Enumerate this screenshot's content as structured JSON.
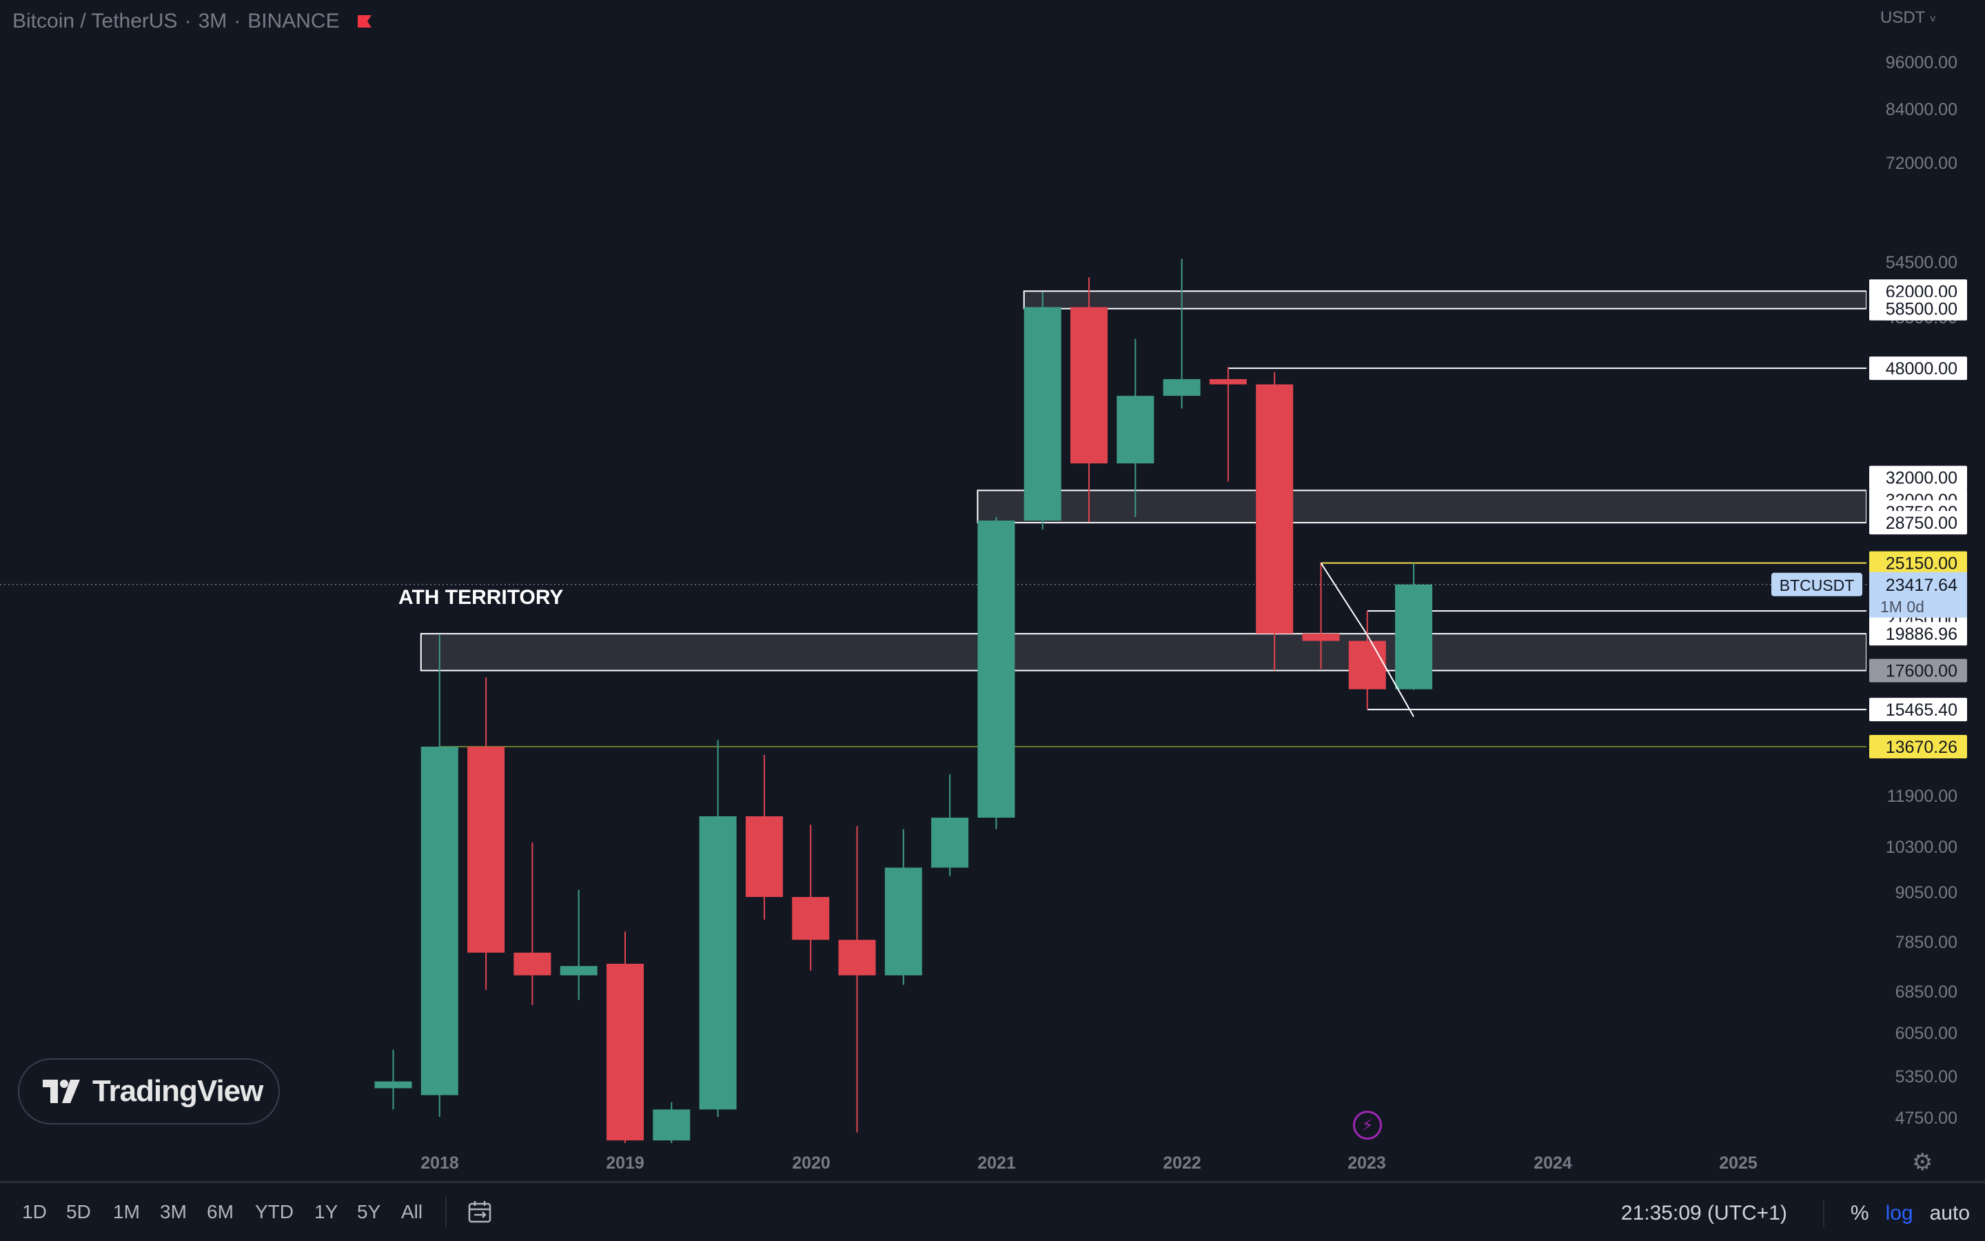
{
  "header": {
    "symbol_title": "Bitcoin / TetherUS",
    "interval": "3M",
    "exchange": "BINANCE",
    "currency_selector": "USDT"
  },
  "toolbar": {
    "timeframes": [
      "1D",
      "5D",
      "1M",
      "3M",
      "6M",
      "YTD",
      "1Y",
      "5Y",
      "All"
    ],
    "clock": "21:35:09 (UTC+1)",
    "percent_label": "%",
    "log_label": "log",
    "auto_label": "auto",
    "log_active": true
  },
  "branding": {
    "logo_text": "TradingView"
  },
  "annotations": {
    "ath_label": "ATH TERRITORY"
  },
  "colors": {
    "background": "#131722",
    "bull": "#3d9b85",
    "bear": "#e0444e",
    "zone_fill": "#2e3039",
    "line": "#ffffff",
    "yellow_label": "#f7e34a",
    "last_price_label": "#bbd6f7"
  },
  "chart_data": {
    "type": "candlestick",
    "scale": "log",
    "x_axis_labels": [
      "2018",
      "2019",
      "2020",
      "2021",
      "2022",
      "2023",
      "2024",
      "2025"
    ],
    "y_axis_ticks": [
      "96000.00",
      "84000.00",
      "72000.00",
      "54500.00",
      "48500.00",
      "40500.00",
      "26500.00",
      "11900.00",
      "10300.00",
      "9050.00",
      "7850.00",
      "6850.00",
      "6050.00",
      "5350.00",
      "4750.00"
    ],
    "ylim": [
      4200,
      115000
    ],
    "candles": [
      {
        "period": "2017-Q3",
        "open": 4400,
        "high": 5000,
        "low": 4100,
        "close": 4500
      },
      {
        "period": "2017-Q4",
        "open": 4300,
        "high": 19800,
        "low": 4000,
        "close": 13670
      },
      {
        "period": "2018-Q1",
        "open": 13670,
        "high": 17200,
        "low": 6100,
        "close": 6900
      },
      {
        "period": "2018-Q2",
        "open": 6900,
        "high": 9950,
        "low": 5800,
        "close": 6400
      },
      {
        "period": "2018-Q3",
        "open": 6400,
        "high": 8500,
        "low": 5900,
        "close": 6600
      },
      {
        "period": "2018-Q4",
        "open": 6650,
        "high": 7400,
        "low": 3200,
        "close": 3700
      },
      {
        "period": "2019-Q1",
        "open": 3700,
        "high": 4200,
        "low": 3300,
        "close": 4100
      },
      {
        "period": "2019-Q2",
        "open": 4100,
        "high": 13970,
        "low": 4000,
        "close": 10850
      },
      {
        "period": "2019-Q3",
        "open": 10850,
        "high": 13300,
        "low": 7700,
        "close": 8300
      },
      {
        "period": "2019-Q4",
        "open": 8300,
        "high": 10550,
        "low": 6500,
        "close": 7200
      },
      {
        "period": "2020-Q1",
        "open": 7200,
        "high": 10500,
        "low": 3800,
        "close": 6400
      },
      {
        "period": "2020-Q2",
        "open": 6400,
        "high": 10400,
        "low": 6200,
        "close": 9150
      },
      {
        "period": "2020-Q3",
        "open": 9150,
        "high": 12470,
        "low": 8900,
        "close": 10800
      },
      {
        "period": "2020-Q4",
        "open": 10800,
        "high": 29300,
        "low": 10400,
        "close": 28950
      },
      {
        "period": "2021-Q1",
        "open": 28950,
        "high": 61800,
        "low": 28100,
        "close": 58800
      },
      {
        "period": "2021-Q2",
        "open": 58800,
        "high": 64900,
        "low": 28800,
        "close": 35000
      },
      {
        "period": "2021-Q3",
        "open": 35000,
        "high": 52900,
        "low": 29300,
        "close": 43800
      },
      {
        "period": "2021-Q4",
        "open": 43800,
        "high": 69000,
        "low": 42000,
        "close": 46300
      },
      {
        "period": "2022-Q1",
        "open": 46300,
        "high": 48200,
        "low": 32950,
        "close": 45500
      },
      {
        "period": "2022-Q2",
        "open": 45500,
        "high": 47400,
        "low": 17600,
        "close": 19900
      },
      {
        "period": "2022-Q3",
        "open": 19900,
        "high": 25200,
        "low": 17700,
        "close": 19420
      },
      {
        "period": "2022-Q4",
        "open": 19420,
        "high": 21450,
        "low": 15470,
        "close": 16540
      },
      {
        "period": "2023-Q1",
        "open": 16540,
        "high": 25150,
        "low": 16500,
        "close": 23417
      }
    ],
    "zones": [
      {
        "top": 62000,
        "bottom": 58500,
        "from_period": "2021-Q1"
      },
      {
        "top": 32000,
        "bottom": 28750,
        "from_period": "2020-Q4"
      },
      {
        "top": 19886.96,
        "bottom": 17600,
        "from_period": "2017-Q4"
      }
    ],
    "horizontal_levels": [
      {
        "price": 48000,
        "from_period": "2022-Q1"
      },
      {
        "price": 25150,
        "from_period": "2022-Q3"
      },
      {
        "price": 21450,
        "from_period": "2022-Q4"
      },
      {
        "price": 15465.4,
        "from_period": "2022-Q4"
      },
      {
        "price": 13670.26,
        "from_period": "2017-Q4"
      }
    ],
    "price_labels": [
      {
        "text": "62000.00",
        "price": 62000,
        "style": "white"
      },
      {
        "text": "58500.00",
        "price": 58500,
        "style": "white"
      },
      {
        "text": "48000.00",
        "price": 48000,
        "style": "white"
      },
      {
        "text": "32000.00",
        "price": 33400,
        "style": "white"
      },
      {
        "text": "32000.00",
        "price": 31000,
        "style": "white"
      },
      {
        "text": "28750.00",
        "price": 29800,
        "style": "white"
      },
      {
        "text": "28750.00",
        "price": 28750,
        "style": "white"
      },
      {
        "text": "25150.00",
        "price": 25150,
        "style": "yellow"
      },
      {
        "text": "21450.00",
        "price": 20800,
        "style": "white"
      },
      {
        "text": "19886.96",
        "price": 19886.96,
        "style": "white"
      },
      {
        "text": "17600.00",
        "price": 17600,
        "style": "gray"
      },
      {
        "text": "15465.40",
        "price": 15465.4,
        "style": "white"
      },
      {
        "text": "13670.26",
        "price": 13670.26,
        "style": "yellow"
      }
    ],
    "last_price": {
      "symbol": "BTCUSDT",
      "price": "23417.64",
      "countdown": "1M 0d",
      "value": 23417.64
    },
    "trend_lines": [
      {
        "from_period": "2022-Q3",
        "from_price": 25150,
        "to_period": "2022-Q4",
        "to_price": 19800
      },
      {
        "from_period": "2022-Q4",
        "from_price": 19800,
        "to_period": "2023-Q1",
        "to_price": 15100
      }
    ]
  }
}
